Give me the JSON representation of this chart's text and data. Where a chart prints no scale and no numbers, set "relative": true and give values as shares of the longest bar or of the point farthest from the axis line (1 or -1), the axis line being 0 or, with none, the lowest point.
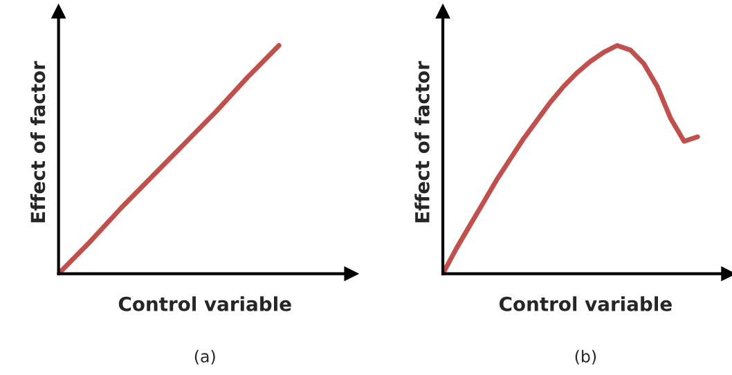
{
  "chart_data": [
    {
      "type": "line",
      "relative": true,
      "xlabel": "Control variable",
      "ylabel": "Effect of factor",
      "annotations": [
        "(a)"
      ],
      "categories": [
        null,
        null,
        null,
        null,
        null,
        null,
        null,
        null,
        null,
        null
      ],
      "series": [
        {
          "color": "#c0504d",
          "values": [
            0,
            0.14,
            0.29,
            0.43,
            0.57,
            0.71,
            0.86,
            1,
            null,
            null
          ]
        }
      ]
    },
    {
      "type": "line",
      "relative": true,
      "xlabel": "Control variable",
      "ylabel": "Effect of factor",
      "annotations": [
        "(b)"
      ],
      "categories": [
        null,
        null,
        null,
        null,
        null,
        null,
        null,
        null,
        null,
        null,
        null,
        null,
        null,
        null,
        null,
        null,
        null,
        null,
        null,
        null,
        null,
        null
      ],
      "series": [
        {
          "color": "#c0504d",
          "values": [
            0,
            0.11,
            0.21,
            0.31,
            0.41,
            0.5,
            0.59,
            0.67,
            0.75,
            0.82,
            0.88,
            0.93,
            0.97,
            1,
            0.98,
            0.92,
            0.82,
            0.68,
            0.58,
            0.6,
            null,
            null
          ]
        }
      ]
    }
  ]
}
